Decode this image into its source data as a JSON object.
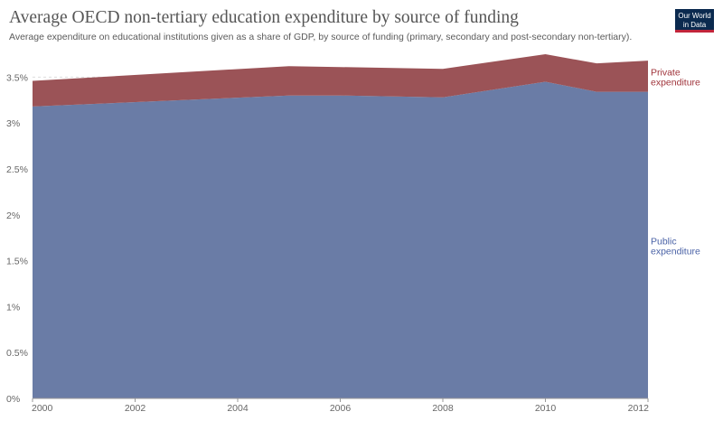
{
  "header": {
    "title": "Average OECD non-tertiary education expenditure by source of funding",
    "subtitle": "Average expenditure on educational institutions given as a share of GDP, by source of funding (primary, secondary and post-secondary non-tertiary).",
    "logo_line1": "Our World",
    "logo_line2": "in Data"
  },
  "chart_data": {
    "type": "area",
    "stacked": true,
    "title": "Average OECD non-tertiary education expenditure by source of funding",
    "xlabel": "",
    "ylabel": "",
    "x": [
      2000,
      2005,
      2006,
      2008,
      2010,
      2011,
      2012
    ],
    "series": [
      {
        "name": "Public expenditure",
        "color": "#6a7ca6",
        "label_color": "#4a62a6",
        "values": [
          3.18,
          3.3,
          3.3,
          3.28,
          3.45,
          3.34,
          3.34
        ]
      },
      {
        "name": "Private expenditure",
        "color": "#9b5357",
        "label_color": "#a0343b",
        "values": [
          0.28,
          0.32,
          0.31,
          0.31,
          0.3,
          0.31,
          0.34
        ]
      }
    ],
    "xlim": [
      2000,
      2012
    ],
    "ylim": [
      0,
      3.75
    ],
    "x_ticks": [
      2000,
      2002,
      2004,
      2006,
      2008,
      2010,
      2012
    ],
    "x_tick_labels": [
      "2000",
      "2002",
      "2004",
      "2006",
      "2008",
      "2010",
      "2012"
    ],
    "y_ticks": [
      0,
      0.5,
      1,
      1.5,
      2,
      2.5,
      3,
      3.5
    ],
    "y_tick_labels": [
      "0%",
      "0.5%",
      "1%",
      "1.5%",
      "2%",
      "2.5%",
      "3%",
      "3.5%"
    ],
    "grid": "horizontal dashed",
    "legend": "right, inline labels",
    "series_labels": [
      {
        "series": "Private expenditure",
        "lines": [
          "Private",
          "expenditure"
        ]
      },
      {
        "series": "Public expenditure",
        "lines": [
          "Public",
          "expenditure"
        ]
      }
    ]
  }
}
